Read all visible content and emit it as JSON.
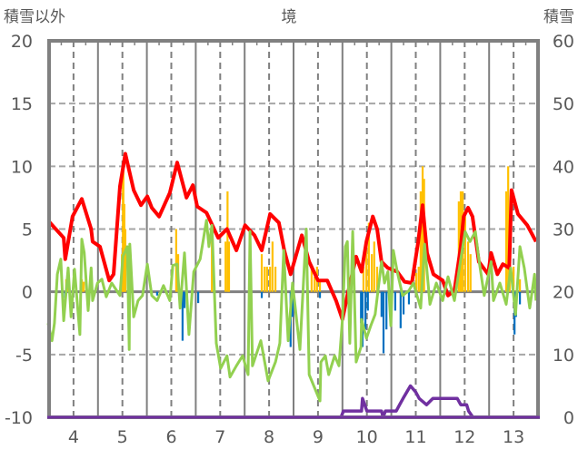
{
  "chart_data": {
    "type": "bar+line",
    "title": "境",
    "ylabel": "積雪以外",
    "y2label": "積雪",
    "ylim": [
      -10,
      20
    ],
    "y2lim": [
      0,
      60
    ],
    "xlim": [
      3.5,
      13.5
    ],
    "yticks": [
      "20",
      "15",
      "10",
      "5",
      "0",
      "-5",
      "-10"
    ],
    "y2ticks": [
      "60",
      "50",
      "40",
      "30",
      "20",
      "10",
      "0"
    ],
    "xticks": [
      "4",
      "5",
      "6",
      "7",
      "8",
      "9",
      "10",
      "11",
      "12",
      "13"
    ],
    "grid": true,
    "colors": {
      "red": "#FF0000",
      "green": "#92D050",
      "purple": "#7030A0",
      "bar_pos": "#FFC000",
      "bar_neg": "#0070C0",
      "frame": "#808080"
    },
    "bars_positive": [
      [
        3.85,
        1
      ],
      [
        3.89,
        0.6
      ],
      [
        4.17,
        1
      ],
      [
        4.21,
        0.8
      ],
      [
        4.99,
        3
      ],
      [
        5.01,
        9.4
      ],
      [
        5.02,
        10.5
      ],
      [
        5.04,
        7
      ],
      [
        5.06,
        5
      ],
      [
        6.1,
        5
      ],
      [
        6.14,
        3
      ],
      [
        6.83,
        5
      ],
      [
        7.11,
        4
      ],
      [
        7.15,
        8
      ],
      [
        7.18,
        4
      ],
      [
        7.85,
        3
      ],
      [
        7.91,
        2
      ],
      [
        7.96,
        2
      ],
      [
        8.02,
        2
      ],
      [
        8.07,
        4
      ],
      [
        8.13,
        2
      ],
      [
        8.87,
        2
      ],
      [
        8.93,
        1.2
      ],
      [
        8.98,
        2
      ],
      [
        9.04,
        1
      ],
      [
        9.93,
        2
      ],
      [
        9.99,
        4
      ],
      [
        10.04,
        5.5
      ],
      [
        10.1,
        3
      ],
      [
        10.15,
        4
      ],
      [
        10.21,
        2
      ],
      [
        11.01,
        1.5
      ],
      [
        11.06,
        2
      ],
      [
        11.1,
        8
      ],
      [
        11.14,
        10
      ],
      [
        11.17,
        9
      ],
      [
        11.88,
        7.2
      ],
      [
        11.92,
        8
      ],
      [
        11.96,
        8
      ],
      [
        12.01,
        6
      ],
      [
        12.07,
        4
      ],
      [
        12.12,
        3
      ],
      [
        12.85,
        8
      ],
      [
        12.89,
        10
      ],
      [
        12.92,
        4
      ],
      [
        13.0,
        2
      ],
      [
        13.13,
        1
      ]
    ],
    "bars_negative": [
      [
        3.83,
        -0.5
      ],
      [
        5.71,
        -0.3
      ],
      [
        6.23,
        -3.9
      ],
      [
        6.27,
        -1.3
      ],
      [
        6.55,
        -0.9
      ],
      [
        7.85,
        -0.5
      ],
      [
        8.44,
        -4.4
      ],
      [
        8.48,
        -2
      ],
      [
        9.04,
        -0.5
      ],
      [
        9.88,
        -2.5
      ],
      [
        9.91,
        -4.4
      ],
      [
        9.97,
        -3
      ],
      [
        10.02,
        -1.5
      ],
      [
        10.3,
        -2
      ],
      [
        10.34,
        -4.9
      ],
      [
        10.4,
        -3
      ],
      [
        10.58,
        -1.5
      ],
      [
        10.69,
        -2.9
      ],
      [
        10.75,
        -1.8
      ],
      [
        10.86,
        -1
      ],
      [
        13.02,
        -3.4
      ],
      [
        13.05,
        -2
      ],
      [
        13.13,
        -1
      ]
    ],
    "series": [
      {
        "name": "red",
        "axis": "left",
        "points": [
          [
            3.5,
            5.6
          ],
          [
            3.52,
            5.5
          ],
          [
            3.8,
            4.3
          ],
          [
            3.83,
            2.6
          ],
          [
            3.98,
            6
          ],
          [
            4.17,
            7.4
          ],
          [
            4.36,
            5
          ],
          [
            4.39,
            4
          ],
          [
            4.54,
            3.6
          ],
          [
            4.73,
            0.9
          ],
          [
            4.82,
            1.4
          ],
          [
            4.95,
            8.4
          ],
          [
            5.06,
            11
          ],
          [
            5.23,
            8.1
          ],
          [
            5.38,
            6.9
          ],
          [
            5.51,
            7.6
          ],
          [
            5.6,
            6.7
          ],
          [
            5.75,
            6
          ],
          [
            5.97,
            7.9
          ],
          [
            6.12,
            10.3
          ],
          [
            6.31,
            7.5
          ],
          [
            6.44,
            8.5
          ],
          [
            6.53,
            6.8
          ],
          [
            6.72,
            6.3
          ],
          [
            6.96,
            4.3
          ],
          [
            7.14,
            5
          ],
          [
            7.33,
            3.3
          ],
          [
            7.51,
            5.3
          ],
          [
            7.7,
            4.5
          ],
          [
            7.85,
            3.3
          ],
          [
            8.02,
            6.2
          ],
          [
            8.2,
            5.5
          ],
          [
            8.31,
            3.3
          ],
          [
            8.44,
            1.4
          ],
          [
            8.67,
            4.5
          ],
          [
            8.82,
            2.4
          ],
          [
            9.0,
            0.9
          ],
          [
            9.19,
            0.9
          ],
          [
            9.37,
            -0.7
          ],
          [
            9.5,
            -2.2
          ],
          [
            9.6,
            -0.3
          ],
          [
            9.78,
            2.8
          ],
          [
            9.89,
            1.6
          ],
          [
            9.99,
            4
          ],
          [
            10.12,
            6
          ],
          [
            10.21,
            5
          ],
          [
            10.3,
            2.4
          ],
          [
            10.43,
            1.9
          ],
          [
            10.62,
            1.6
          ],
          [
            10.77,
            0.8
          ],
          [
            10.92,
            0.7
          ],
          [
            11.05,
            4
          ],
          [
            11.14,
            6.9
          ],
          [
            11.23,
            3.1
          ],
          [
            11.36,
            1.4
          ],
          [
            11.55,
            0.9
          ],
          [
            11.66,
            -0.3
          ],
          [
            11.79,
            0.1
          ],
          [
            11.92,
            3.6
          ],
          [
            11.98,
            6
          ],
          [
            12.07,
            6.7
          ],
          [
            12.16,
            6
          ],
          [
            12.29,
            2.4
          ],
          [
            12.48,
            1.4
          ],
          [
            12.54,
            3.1
          ],
          [
            12.67,
            1.4
          ],
          [
            12.78,
            2.2
          ],
          [
            12.91,
            1.9
          ],
          [
            12.96,
            8.1
          ],
          [
            13.09,
            6.2
          ],
          [
            13.28,
            5.3
          ],
          [
            13.46,
            4
          ]
        ]
      },
      {
        "name": "green",
        "axis": "left",
        "points": [
          [
            3.48,
            -2.5
          ],
          [
            3.56,
            -3.9
          ],
          [
            3.61,
            -2.5
          ],
          [
            3.67,
            1.4
          ],
          [
            3.74,
            2.6
          ],
          [
            3.8,
            -2.3
          ],
          [
            3.89,
            1.9
          ],
          [
            3.95,
            -2
          ],
          [
            4.02,
            1.8
          ],
          [
            4.13,
            -3.4
          ],
          [
            4.17,
            4.2
          ],
          [
            4.22,
            3.1
          ],
          [
            4.3,
            -1.5
          ],
          [
            4.36,
            1.9
          ],
          [
            4.39,
            -0.7
          ],
          [
            4.49,
            0.7
          ],
          [
            4.58,
            1
          ],
          [
            4.67,
            -0.4
          ],
          [
            4.78,
            0.7
          ],
          [
            4.95,
            -0.3
          ],
          [
            5.01,
            2.8
          ],
          [
            5.1,
            3.6
          ],
          [
            5.14,
            -4.6
          ],
          [
            5.15,
            3.8
          ],
          [
            5.23,
            -2
          ],
          [
            5.32,
            -0.7
          ],
          [
            5.41,
            -0.3
          ],
          [
            5.51,
            2.2
          ],
          [
            5.6,
            -0.3
          ],
          [
            5.71,
            -0.7
          ],
          [
            5.84,
            0.5
          ],
          [
            5.97,
            -0.7
          ],
          [
            6.03,
            2.1
          ],
          [
            6.12,
            2.2
          ],
          [
            6.18,
            -1.3
          ],
          [
            6.27,
            3.1
          ],
          [
            6.36,
            -3.4
          ],
          [
            6.46,
            1.6
          ],
          [
            6.59,
            2.6
          ],
          [
            6.72,
            5.7
          ],
          [
            6.77,
            3.6
          ],
          [
            6.83,
            5.3
          ],
          [
            6.92,
            -4.1
          ],
          [
            7.01,
            -6.1
          ],
          [
            7.14,
            -5.1
          ],
          [
            7.2,
            -6.8
          ],
          [
            7.33,
            -5.9
          ],
          [
            7.46,
            -5.1
          ],
          [
            7.57,
            -6.6
          ],
          [
            7.61,
            4.8
          ],
          [
            7.66,
            -5.9
          ],
          [
            7.83,
            -3.9
          ],
          [
            7.98,
            -7.1
          ],
          [
            8.13,
            -5.6
          ],
          [
            8.22,
            -4.1
          ],
          [
            8.3,
            3.3
          ],
          [
            8.39,
            -3.9
          ],
          [
            8.48,
            0.7
          ],
          [
            8.63,
            -4.6
          ],
          [
            8.76,
            5
          ],
          [
            8.82,
            -6.6
          ],
          [
            9.04,
            -8.7
          ],
          [
            9.06,
            -5.6
          ],
          [
            9.15,
            -5.1
          ],
          [
            9.22,
            -6.6
          ],
          [
            9.34,
            -5.1
          ],
          [
            9.43,
            -5.9
          ],
          [
            9.5,
            -2.2
          ],
          [
            9.56,
            3.6
          ],
          [
            9.6,
            4
          ],
          [
            9.65,
            -4.1
          ],
          [
            9.71,
            4.8
          ],
          [
            9.78,
            -5.6
          ],
          [
            9.88,
            -4.4
          ],
          [
            9.89,
            -2.2
          ],
          [
            9.99,
            -3.7
          ],
          [
            10.08,
            -2.7
          ],
          [
            10.17,
            -1.8
          ],
          [
            10.3,
            2.4
          ],
          [
            10.36,
            0.7
          ],
          [
            10.43,
            1.6
          ],
          [
            10.49,
            -2.7
          ],
          [
            10.54,
            3.3
          ],
          [
            10.62,
            1.6
          ],
          [
            10.73,
            -0.3
          ],
          [
            10.86,
            0.1
          ],
          [
            10.95,
            0.7
          ],
          [
            11.1,
            -1.3
          ],
          [
            11.18,
            3.8
          ],
          [
            11.29,
            -1
          ],
          [
            11.42,
            0.7
          ],
          [
            11.55,
            -0.7
          ],
          [
            11.66,
            1.2
          ],
          [
            11.79,
            -0.7
          ],
          [
            11.92,
            2.6
          ],
          [
            12.01,
            4.8
          ],
          [
            12.11,
            4
          ],
          [
            12.22,
            4.8
          ],
          [
            12.29,
            2.6
          ],
          [
            12.4,
            -0.3
          ],
          [
            12.54,
            2.4
          ],
          [
            12.59,
            -0.7
          ],
          [
            12.72,
            0.7
          ],
          [
            12.85,
            -1
          ],
          [
            12.94,
            1.9
          ],
          [
            13.04,
            -1.8
          ],
          [
            13.13,
            3.6
          ],
          [
            13.22,
            1.9
          ],
          [
            13.33,
            -1.3
          ],
          [
            13.43,
            1.4
          ],
          [
            13.46,
            -0.7
          ]
        ]
      },
      {
        "name": "purple",
        "axis": "right",
        "points": [
          [
            3.5,
            0
          ],
          [
            9.47,
            0
          ],
          [
            9.52,
            1
          ],
          [
            9.89,
            1
          ],
          [
            9.91,
            3
          ],
          [
            10.0,
            1
          ],
          [
            10.3,
            1
          ],
          [
            10.33,
            0
          ],
          [
            10.38,
            1
          ],
          [
            10.6,
            1
          ],
          [
            10.67,
            2
          ],
          [
            10.74,
            3
          ],
          [
            10.89,
            5
          ],
          [
            11.0,
            4
          ],
          [
            11.07,
            3
          ],
          [
            11.22,
            2
          ],
          [
            11.35,
            3
          ],
          [
            11.85,
            3
          ],
          [
            11.92,
            2
          ],
          [
            12.04,
            2
          ],
          [
            12.08,
            1
          ],
          [
            12.17,
            0
          ],
          [
            13.5,
            0
          ]
        ]
      }
    ]
  }
}
